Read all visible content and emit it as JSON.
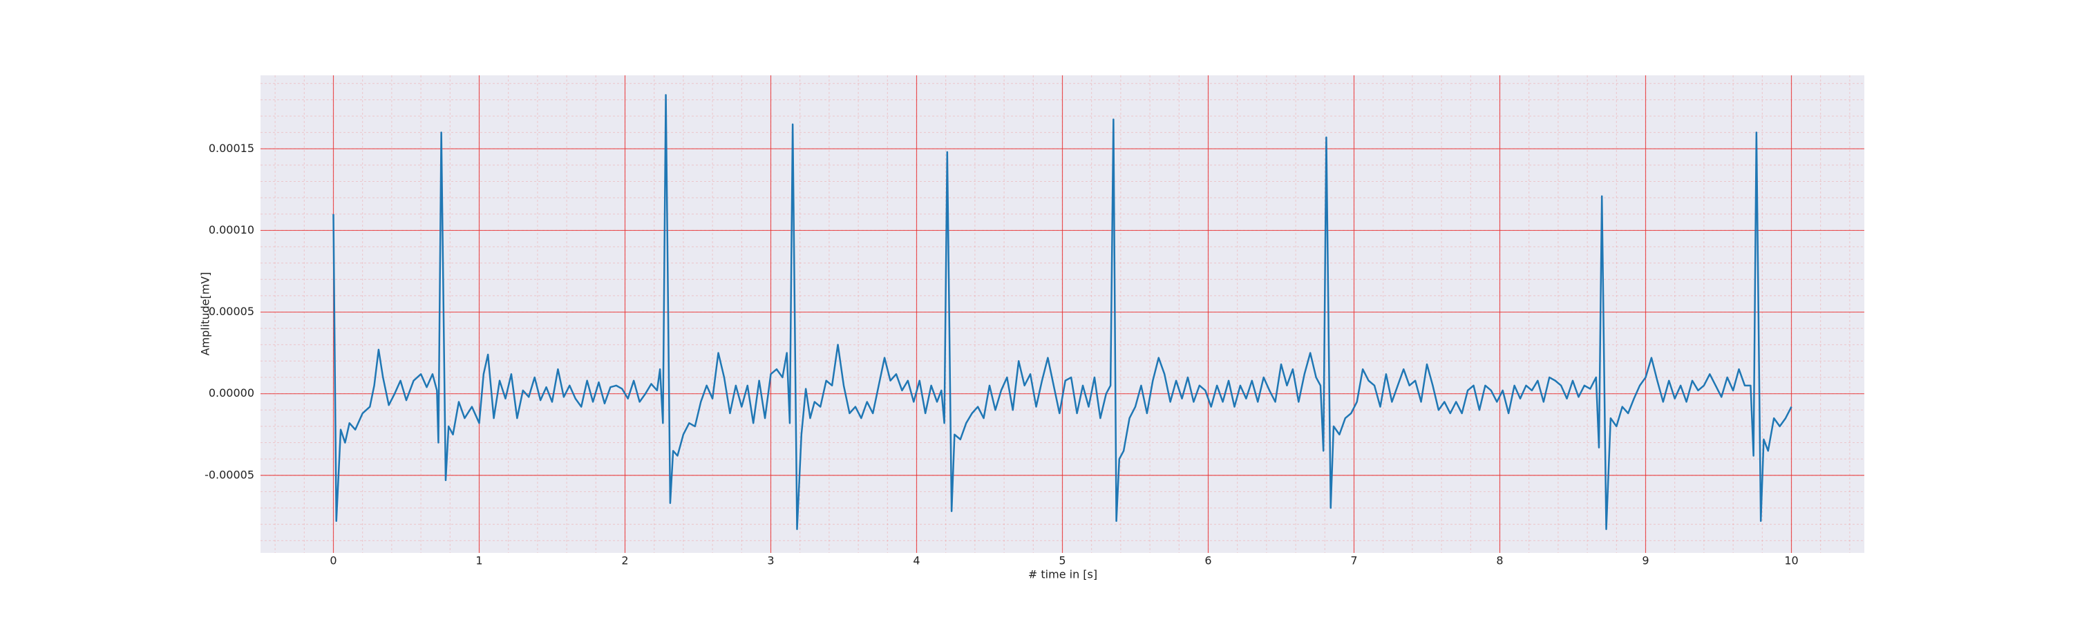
{
  "chart_data": {
    "type": "line",
    "xlabel": "# time in [s]",
    "ylabel": "Amplitude[mV]",
    "color": "#1f77b4",
    "background": "#eaeaf2",
    "grid": true,
    "grid_color": "#f08080",
    "minor_grid": {
      "x": 5,
      "y": 5
    },
    "xlim": [
      -0.5,
      10.5
    ],
    "xticks": [
      0,
      1,
      2,
      3,
      4,
      5,
      6,
      7,
      8,
      9,
      10
    ],
    "ylim": [
      -9.75e-05,
      0.000195
    ],
    "yticks": [
      -5e-05,
      {
        "value": 0,
        "label": "0.00000"
      },
      5e-05,
      {
        "value": 0.0001,
        "label": "0.00010"
      },
      0.00015
    ],
    "x": [
      0,
      0.02,
      0.05,
      0.08,
      0.11,
      0.15,
      0.2,
      0.25,
      0.28,
      0.31,
      0.34,
      0.38,
      0.42,
      0.46,
      0.5,
      0.55,
      0.6,
      0.64,
      0.68,
      0.71,
      0.72,
      0.74,
      0.77,
      0.79,
      0.82,
      0.86,
      0.9,
      0.95,
      1.0,
      1.03,
      1.06,
      1.1,
      1.14,
      1.18,
      1.22,
      1.26,
      1.3,
      1.34,
      1.38,
      1.42,
      1.46,
      1.5,
      1.54,
      1.58,
      1.62,
      1.66,
      1.7,
      1.74,
      1.78,
      1.82,
      1.86,
      1.9,
      1.94,
      1.98,
      2.02,
      2.06,
      2.1,
      2.14,
      2.18,
      2.22,
      2.24,
      2.26,
      2.28,
      2.31,
      2.33,
      2.36,
      2.4,
      2.44,
      2.48,
      2.52,
      2.56,
      2.6,
      2.64,
      2.68,
      2.72,
      2.76,
      2.8,
      2.84,
      2.88,
      2.92,
      2.96,
      3.0,
      3.04,
      3.08,
      3.11,
      3.13,
      3.15,
      3.18,
      3.21,
      3.24,
      3.27,
      3.3,
      3.34,
      3.38,
      3.42,
      3.46,
      3.5,
      3.54,
      3.58,
      3.62,
      3.66,
      3.7,
      3.74,
      3.78,
      3.82,
      3.86,
      3.9,
      3.94,
      3.98,
      4.02,
      4.06,
      4.1,
      4.14,
      4.17,
      4.19,
      4.21,
      4.24,
      4.26,
      4.3,
      4.34,
      4.38,
      4.42,
      4.46,
      4.5,
      4.54,
      4.58,
      4.62,
      4.66,
      4.7,
      4.74,
      4.78,
      4.82,
      4.86,
      4.9,
      4.94,
      4.98,
      5.02,
      5.06,
      5.1,
      5.14,
      5.18,
      5.22,
      5.26,
      5.3,
      5.33,
      5.35,
      5.37,
      5.39,
      5.42,
      5.46,
      5.5,
      5.54,
      5.58,
      5.62,
      5.66,
      5.7,
      5.74,
      5.78,
      5.82,
      5.86,
      5.9,
      5.94,
      5.98,
      6.02,
      6.06,
      6.1,
      6.14,
      6.18,
      6.22,
      6.26,
      6.3,
      6.34,
      6.38,
      6.42,
      6.46,
      6.5,
      6.54,
      6.58,
      6.62,
      6.66,
      6.7,
      6.74,
      6.77,
      6.79,
      6.81,
      6.84,
      6.86,
      6.9,
      6.94,
      6.98,
      7.02,
      7.06,
      7.1,
      7.14,
      7.18,
      7.22,
      7.26,
      7.3,
      7.34,
      7.38,
      7.42,
      7.46,
      7.5,
      7.54,
      7.58,
      7.62,
      7.66,
      7.7,
      7.74,
      7.78,
      7.82,
      7.86,
      7.9,
      7.94,
      7.98,
      8.02,
      8.06,
      8.1,
      8.14,
      8.18,
      8.22,
      8.26,
      8.3,
      8.34,
      8.38,
      8.42,
      8.46,
      8.5,
      8.54,
      8.58,
      8.62,
      8.66,
      8.68,
      8.7,
      8.73,
      8.76,
      8.8,
      8.84,
      8.88,
      8.92,
      8.96,
      9.0,
      9.04,
      9.08,
      9.12,
      9.16,
      9.2,
      9.24,
      9.28,
      9.32,
      9.36,
      9.4,
      9.44,
      9.48,
      9.52,
      9.56,
      9.6,
      9.64,
      9.68,
      9.72,
      9.74,
      9.76,
      9.79,
      9.81,
      9.84,
      9.88,
      9.92,
      9.96,
      10.0
    ],
    "values": [
      0.00011,
      -7.8e-05,
      -2.2e-05,
      -3e-05,
      -1.8e-05,
      -2.2e-05,
      -1.2e-05,
      -8e-06,
      5e-06,
      2.7e-05,
      1e-05,
      -7e-06,
      0,
      8e-06,
      -4e-06,
      8e-06,
      1.2e-05,
      4e-06,
      1.2e-05,
      2e-06,
      -3e-05,
      0.00016,
      -5.3e-05,
      -2e-05,
      -2.5e-05,
      -5e-06,
      -1.5e-05,
      -8e-06,
      -1.8e-05,
      1.2e-05,
      2.4e-05,
      -1.5e-05,
      8e-06,
      -3e-06,
      1.2e-05,
      -1.5e-05,
      2e-06,
      -2e-06,
      1e-05,
      -4e-06,
      4e-06,
      -5e-06,
      1.5e-05,
      -2e-06,
      5e-06,
      -3e-06,
      -8e-06,
      8e-06,
      -5e-06,
      7e-06,
      -6e-06,
      4e-06,
      5e-06,
      3e-06,
      -3e-06,
      8e-06,
      -5e-06,
      0,
      6e-06,
      2e-06,
      1.5e-05,
      -1.8e-05,
      0.000183,
      -6.7e-05,
      -3.5e-05,
      -3.8e-05,
      -2.5e-05,
      -1.8e-05,
      -2e-05,
      -5e-06,
      5e-06,
      -3e-06,
      2.5e-05,
      1e-05,
      -1.2e-05,
      5e-06,
      -8e-06,
      5e-06,
      -1.8e-05,
      8e-06,
      -1.5e-05,
      1.2e-05,
      1.5e-05,
      1e-05,
      2.5e-05,
      -1.8e-05,
      0.000165,
      -8.3e-05,
      -2.5e-05,
      3e-06,
      -1.5e-05,
      -5e-06,
      -8e-06,
      8e-06,
      5e-06,
      3e-05,
      5e-06,
      -1.2e-05,
      -8e-06,
      -1.5e-05,
      -5e-06,
      -1.2e-05,
      5e-06,
      2.2e-05,
      8e-06,
      1.2e-05,
      2e-06,
      8e-06,
      -5e-06,
      8e-06,
      -1.2e-05,
      5e-06,
      -5e-06,
      2e-06,
      -1.8e-05,
      0.000148,
      -7.2e-05,
      -2.5e-05,
      -2.8e-05,
      -1.8e-05,
      -1.2e-05,
      -8e-06,
      -1.5e-05,
      5e-06,
      -1e-05,
      2e-06,
      1e-05,
      -1e-05,
      2e-05,
      5e-06,
      1.2e-05,
      -8e-06,
      8e-06,
      2.2e-05,
      5e-06,
      -1.2e-05,
      8e-06,
      1e-05,
      -1.2e-05,
      5e-06,
      -8e-06,
      1e-05,
      -1.5e-05,
      0,
      5e-06,
      0.000168,
      -7.8e-05,
      -4e-05,
      -3.5e-05,
      -1.5e-05,
      -8e-06,
      5e-06,
      -1.2e-05,
      8e-06,
      2.2e-05,
      1.2e-05,
      -5e-06,
      8e-06,
      -3e-06,
      1e-05,
      -5e-06,
      5e-06,
      2e-06,
      -8e-06,
      5e-06,
      -5e-06,
      8e-06,
      -8e-06,
      5e-06,
      -3e-06,
      8e-06,
      -5e-06,
      1e-05,
      2e-06,
      -5e-06,
      1.8e-05,
      5e-06,
      1.5e-05,
      -5e-06,
      1.2e-05,
      2.5e-05,
      1e-05,
      5e-06,
      -3.5e-05,
      0.000157,
      -7e-05,
      -2e-05,
      -2.5e-05,
      -1.5e-05,
      -1.2e-05,
      -5e-06,
      1.5e-05,
      8e-06,
      5e-06,
      -8e-06,
      1.2e-05,
      -5e-06,
      5e-06,
      1.5e-05,
      5e-06,
      8e-06,
      -5e-06,
      1.8e-05,
      5e-06,
      -1e-05,
      -5e-06,
      -1.2e-05,
      -5e-06,
      -1.2e-05,
      2e-06,
      5e-06,
      -1e-05,
      5e-06,
      2e-06,
      -5e-06,
      2e-06,
      -1.2e-05,
      5e-06,
      -3e-06,
      5e-06,
      2e-06,
      8e-06,
      -5e-06,
      1e-05,
      8e-06,
      5e-06,
      -3e-06,
      8e-06,
      -2e-06,
      5e-06,
      3e-06,
      1e-05,
      -3.3e-05,
      0.000121,
      -8.3e-05,
      -1.5e-05,
      -2e-05,
      -8e-06,
      -1.2e-05,
      -3e-06,
      5e-06,
      1e-05,
      2.2e-05,
      8e-06,
      -5e-06,
      8e-06,
      -3e-06,
      5e-06,
      -5e-06,
      8e-06,
      2e-06,
      5e-06,
      1.2e-05,
      5e-06,
      -2e-06,
      1e-05,
      2e-06,
      1.5e-05,
      5e-06,
      5e-06,
      -3.8e-05,
      0.00016,
      -7.8e-05,
      -2.8e-05,
      -3.5e-05,
      -1.5e-05,
      -2e-05,
      -1.5e-05,
      -8e-06
    ]
  }
}
